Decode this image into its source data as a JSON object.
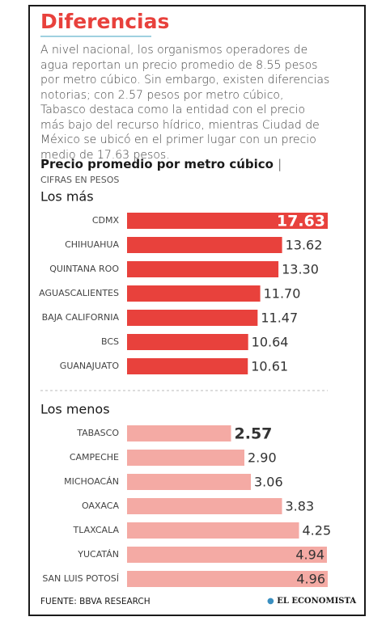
{
  "title": "Diferencias",
  "text": "A nivel nacional, los organismos operadores de agua reportan un precio promedio de 8.55 pesos por metro cúbico. Sin embargo, existen diferencias notorias; con 2.57 pesos por metro cúbico, Tabasco destaca como la entidad con el precio más bajo del recurso hídrico, mientras Ciudad de México se ubicó en el primer lugar con un precio medio de 17.63 pesos.",
  "chart_heading": "Precio promedio por metro cúbico",
  "chart_subheading": "CIFRAS EN PESOS",
  "source": "FUENTE: BBVA RESEARCH",
  "brand": "EL ECONOMISTA",
  "chart_data": [
    {
      "type": "bar",
      "orientation": "horizontal",
      "title": "Los más",
      "color": "#e8413c",
      "categories": [
        "CDMX",
        "CHIHUAHUA",
        "QUINTANA ROO",
        "AGUASCALIENTES",
        "BAJA CALIFORNIA",
        "BCS",
        "GUANAJUATO"
      ],
      "values": [
        17.63,
        13.62,
        13.3,
        11.7,
        11.47,
        10.64,
        10.61
      ],
      "value_labels": [
        "17.63",
        "13.62",
        "13.30",
        "11.70",
        "11.47",
        "10.64",
        "10.61"
      ]
    },
    {
      "type": "bar",
      "orientation": "horizontal",
      "title": "Los menos",
      "color": "#f4aaa4",
      "categories": [
        "TABASCO",
        "CAMPECHE",
        "MICHOACÁN",
        "OAXACA",
        "TLAXCALA",
        "YUCATÁN",
        "SAN LUIS POTOSÍ"
      ],
      "values": [
        2.57,
        2.9,
        3.06,
        3.83,
        4.25,
        4.94,
        4.96
      ],
      "value_labels": [
        "2.57",
        "2.90",
        "3.06",
        "3.83",
        "4.25",
        "4.94",
        "4.96"
      ]
    }
  ]
}
